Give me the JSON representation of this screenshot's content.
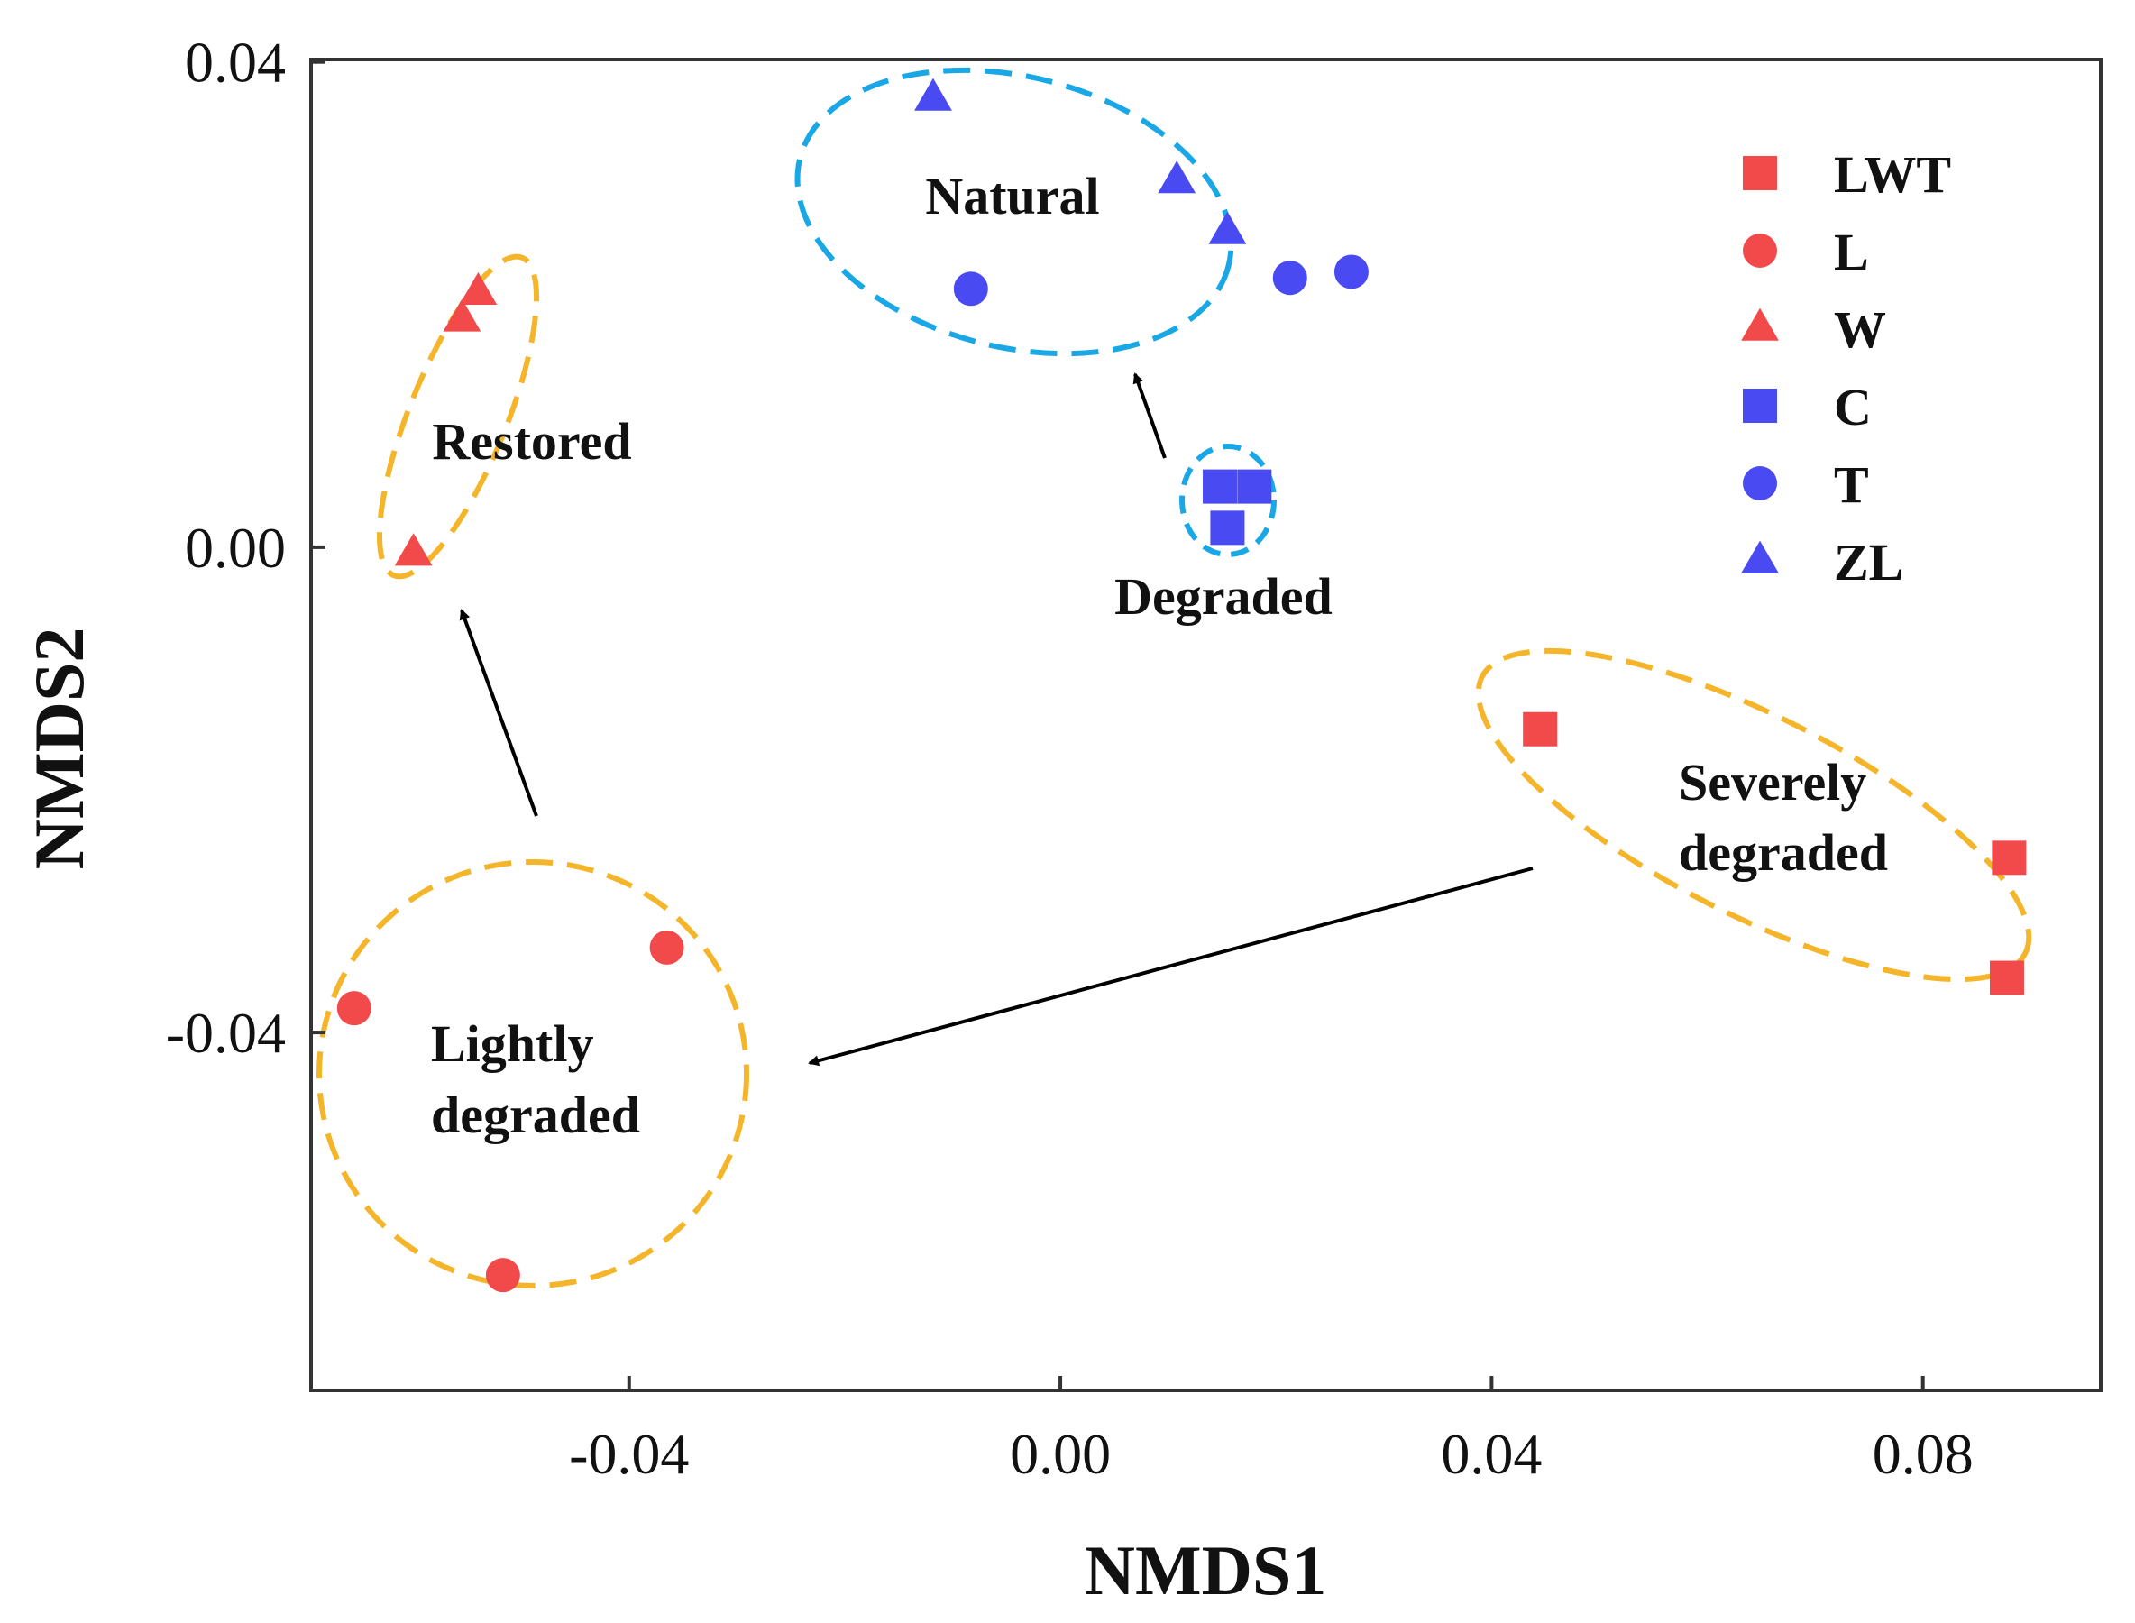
{
  "chart_data": {
    "type": "scatter",
    "xlabel": "NMDS1",
    "ylabel": "NMDS2",
    "xlim": [
      -0.0695,
      0.0965
    ],
    "ylim": [
      -0.0695,
      0.0402
    ],
    "xticks": [
      -0.04,
      0.0,
      0.04,
      0.08
    ],
    "xtick_labels": [
      "-0.04",
      "0.00",
      "0.04",
      "0.08"
    ],
    "yticks": [
      -0.04,
      0.0,
      0.04
    ],
    "ytick_labels": [
      "-0.04",
      "0.00",
      "0.04"
    ],
    "grid": false,
    "legend_position": "top-right",
    "colors": {
      "red": "#f24a4a",
      "blue": "#4a4af2",
      "orange_outline": "#f5b52a",
      "cyan_outline": "#1aa7e6"
    },
    "series": [
      {
        "name": "LWT",
        "marker": "square",
        "color": "#f24a4a",
        "points": [
          [
            0.0445,
            -0.015
          ],
          [
            0.088,
            -0.0256
          ],
          [
            0.0878,
            -0.0355
          ]
        ]
      },
      {
        "name": "L",
        "marker": "circle",
        "color": "#f24a4a",
        "points": [
          [
            -0.0655,
            -0.038
          ],
          [
            -0.0365,
            -0.033
          ],
          [
            -0.0517,
            -0.06
          ]
        ]
      },
      {
        "name": "W",
        "marker": "triangle",
        "color": "#f24a4a",
        "points": [
          [
            -0.054,
            0.021
          ],
          [
            -0.0555,
            0.0188
          ],
          [
            -0.06,
            -0.0005
          ]
        ]
      },
      {
        "name": "C",
        "marker": "square",
        "color": "#4a4af2",
        "points": [
          [
            0.0148,
            0.005
          ],
          [
            0.018,
            0.005
          ],
          [
            0.0155,
            0.0016
          ]
        ]
      },
      {
        "name": "T",
        "marker": "circle",
        "color": "#4a4af2",
        "points": [
          [
            -0.0083,
            0.0213
          ],
          [
            0.0213,
            0.0222
          ],
          [
            0.027,
            0.0227
          ]
        ]
      },
      {
        "name": "ZL",
        "marker": "triangle",
        "color": "#4a4af2",
        "points": [
          [
            -0.0118,
            0.037
          ],
          [
            0.0108,
            0.0302
          ],
          [
            0.0155,
            0.026
          ]
        ]
      }
    ],
    "groups": [
      {
        "label_lines": [
          "Natural"
        ],
        "outline": "cyan"
      },
      {
        "label_lines": [
          "Degraded"
        ],
        "outline": "cyan"
      },
      {
        "label_lines": [
          "Restored"
        ],
        "outline": "orange"
      },
      {
        "label_lines": [
          "Lightly",
          "degraded"
        ],
        "outline": "orange"
      },
      {
        "label_lines": [
          "Severely",
          "degraded"
        ],
        "outline": "orange"
      }
    ]
  }
}
